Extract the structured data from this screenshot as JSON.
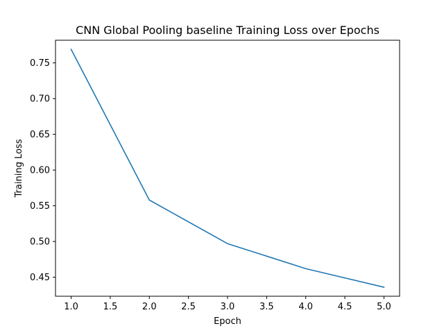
{
  "chart_data": {
    "type": "line",
    "title": "CNN Global Pooling baseline Training Loss over Epochs",
    "xlabel": "Epoch",
    "ylabel": "Training Loss",
    "xlim": [
      0.8,
      5.2
    ],
    "ylim": [
      0.4234,
      0.7817
    ],
    "xticks": [
      1.0,
      1.5,
      2.0,
      2.5,
      3.0,
      3.5,
      4.0,
      4.5,
      5.0
    ],
    "xtick_labels": [
      "1.0",
      "1.5",
      "2.0",
      "2.5",
      "3.0",
      "3.5",
      "4.0",
      "4.5",
      "5.0"
    ],
    "yticks": [
      0.45,
      0.5,
      0.55,
      0.6,
      0.65,
      0.7,
      0.75
    ],
    "ytick_labels": [
      "0.45",
      "0.50",
      "0.55",
      "0.60",
      "0.65",
      "0.70",
      "0.75"
    ],
    "grid": false,
    "legend": "none",
    "series": [
      {
        "color": "#1f77b4",
        "x": [
          1,
          2,
          3,
          4,
          5
        ],
        "y": [
          0.769,
          0.558,
          0.497,
          0.462,
          0.436
        ]
      }
    ]
  }
}
